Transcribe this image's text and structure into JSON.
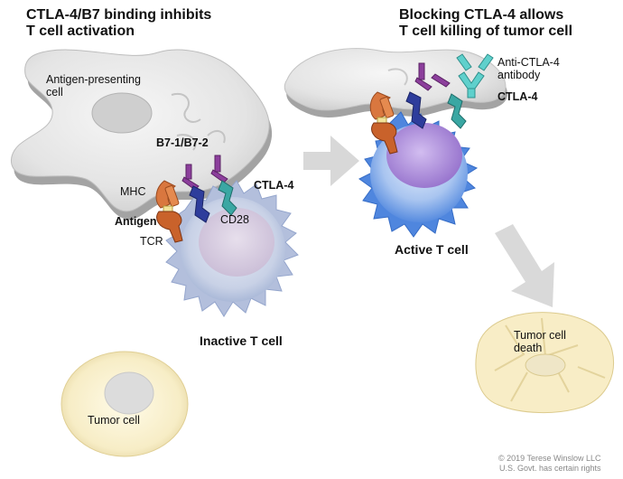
{
  "panel_left": {
    "title_line1": "CTLA-4/B7 binding inhibits",
    "title_line2": "T cell activation",
    "apc_label_line1": "Antigen-presenting",
    "apc_label_line2": "cell",
    "b7_label": "B7-1/B7-2",
    "mhc_label": "MHC",
    "ctla4_label": "CTLA-4",
    "antigen_label": "Antigen",
    "cd28_label": "CD28",
    "tcr_label": "TCR",
    "tcell_label": "Inactive T cell",
    "tumor_label": "Tumor cell"
  },
  "panel_right": {
    "title_line1": "Blocking CTLA-4 allows",
    "title_line2": "T cell killing of tumor cell",
    "antibody_label_line1": "Anti-CTLA-4",
    "antibody_label_line2": "antibody",
    "ctla4_label": "CTLA-4",
    "tcell_label": "Active T cell",
    "tumor_death_line1": "Tumor cell",
    "tumor_death_line2": "death"
  },
  "credit": {
    "line1": "© 2019 Terese Winslow LLC",
    "line2": "U.S. Govt. has certain rights"
  },
  "colors": {
    "apc_fill": "#e6e6e6",
    "apc_shadow": "#9a9a9a",
    "tcell_inactive": "#b9c4dc",
    "tcell_active": "#6f9ee6",
    "nucleus_inactive": "#d9cfe0",
    "nucleus_active": "#b08fd6",
    "tumor_fill": "#fbf3d4",
    "mhc": "#d9773f",
    "tcr": "#c9622b",
    "cd28": "#2e3d9c",
    "b7": "#8c3f9c",
    "ctla4": "#3aa7a3",
    "antibody": "#5fd0cc",
    "arrow": "#d8d8d8"
  }
}
